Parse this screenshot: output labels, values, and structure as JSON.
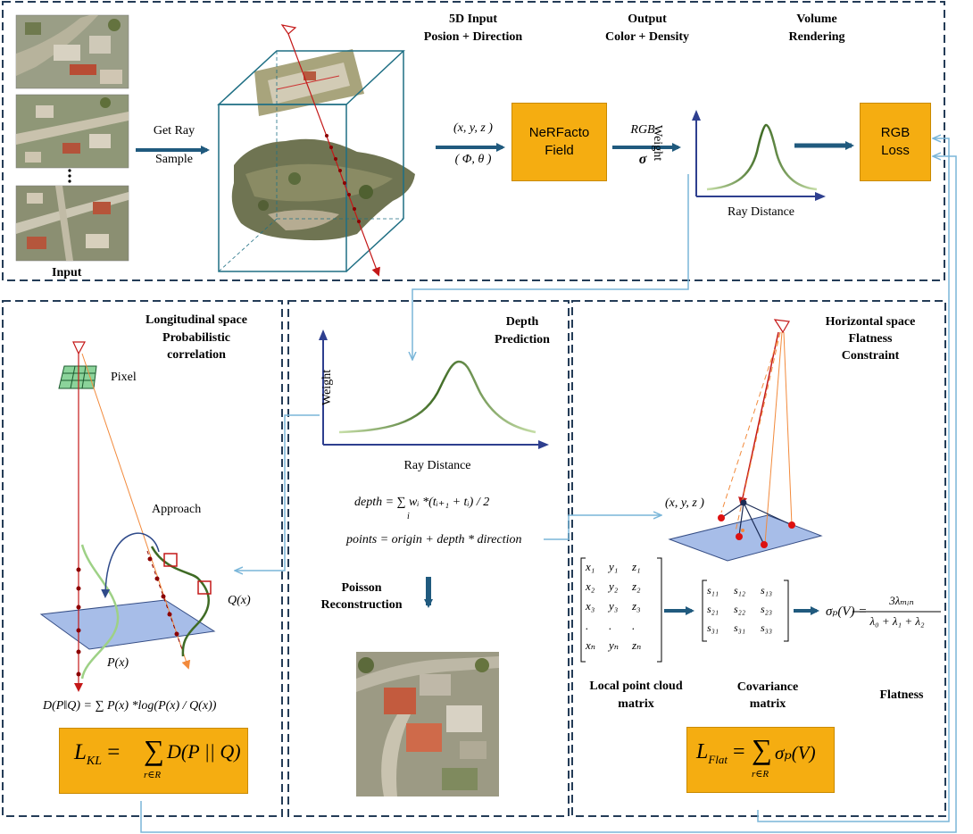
{
  "top": {
    "input_label": "Input",
    "get_ray": "Get Ray",
    "sample": "Sample",
    "five_d_title": "5D Input",
    "five_d_sub": "Posion + Direction",
    "output_title": "Output",
    "output_sub": "Color + Density",
    "volume_title": "Volume",
    "volume_sub": "Rendering",
    "xyz": "(x, y, z )",
    "phitheta": "( Φ,  θ )",
    "field_line1": "NeRFacto",
    "field_line2": "Field",
    "rgb": "RGB",
    "sigma": "σ",
    "weight": "Weight",
    "ray_distance": "Ray Distance",
    "loss_line1": "RGB",
    "loss_line2": "Loss"
  },
  "left": {
    "title_1": "Longitudinal space",
    "title_2": "Probabilistic",
    "title_3": "correlation",
    "pixel": "Pixel",
    "approach": "Approach",
    "qx": "Q(x)",
    "px": "P(x)",
    "kl_formula": "D(P‖Q) = ∑ P(x) *log(P(x) / Q(x))",
    "loss_main": "L",
    "loss_sub": "KL",
    "loss_rhs": "D(P || Q)",
    "loss_under": "r∈R"
  },
  "middle": {
    "title_1": "Depth",
    "title_2": "Prediction",
    "weight": "Weight",
    "ray_distance": "Ray Distance",
    "depth_formula": "depth = ∑ wᵢ *(tᵢ₊₁ + tᵢ) / 2",
    "depth_under": "i",
    "points_formula": "points = origin + depth * direction",
    "poisson_1": "Poisson",
    "poisson_2": "Reconstruction"
  },
  "right": {
    "title_1": "Horizontal space",
    "title_2": "Flatness",
    "title_3": "Constraint",
    "xyz": "(x, y, z )",
    "point_matrix": [
      [
        "x₁",
        "y₁",
        "z₁"
      ],
      [
        "x₂",
        "y₂",
        "z₂"
      ],
      [
        "x₃",
        "y₃",
        "z₃"
      ],
      [
        ".",
        ".",
        "."
      ],
      [
        "xₙ",
        "yₙ",
        "zₙ"
      ]
    ],
    "cov_matrix": [
      [
        "s₁₁",
        "s₁₂",
        "s₁₃"
      ],
      [
        "s₂₁",
        "s₂₂",
        "s₂₃"
      ],
      [
        "s₃₁",
        "s₃₁",
        "s₃₃"
      ]
    ],
    "flat_lhs": "σₚ(V) =",
    "flat_num": "3λₘᵢₙ",
    "flat_den": "λ₀ + λ₁ + λ₂",
    "local_1": "Local point cloud",
    "local_2": "matrix",
    "cov_1": "Covariance",
    "cov_2": "matrix",
    "flatness": "Flatness",
    "loss_main": "L",
    "loss_sub": "Flat",
    "loss_rhs": "σₚ(V)",
    "loss_under": "r∈R"
  },
  "colors": {
    "dash_border": "#243c57",
    "accent_arrow": "#205a7e",
    "orange_box": "#f5ad11",
    "connector": "#7ab6d9",
    "curve_green": "#3f6b25",
    "ray_red": "#c41818",
    "ray_orange": "#f28a3c",
    "plane_blue": "#a7bde8"
  },
  "icons": [
    "camera-frustum-icon",
    "pixel-grid-icon",
    "aerial-photo-icon"
  ]
}
